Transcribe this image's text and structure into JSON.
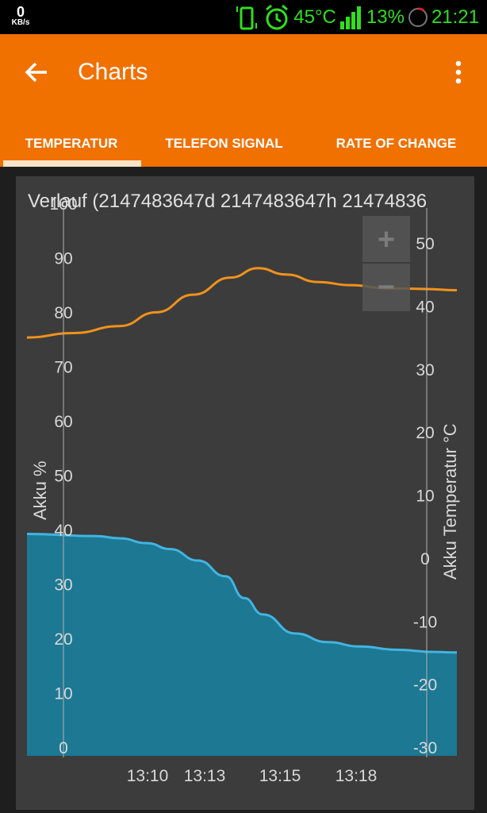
{
  "status_bar": {
    "net_speed": "0",
    "net_unit": "KB/s",
    "temperature": "45°C",
    "battery": "13%",
    "time": "21:21"
  },
  "app_bar": {
    "title": "Charts",
    "back_icon": "arrow-left-icon",
    "menu_icon": "more-vert-icon"
  },
  "tabs": [
    {
      "label": "TEMPERATUR",
      "active": true
    },
    {
      "label": "TELEFON SIGNAL",
      "active": false
    },
    {
      "label": "RATE OF CHANGE",
      "active": false
    }
  ],
  "zoom": {
    "in_label": "+",
    "out_label": "−"
  },
  "chart_data": {
    "type": "line",
    "title": "Verlauf (2147483647d 2147483647h 21474836",
    "x_ticks": [
      "13:10",
      "13:13",
      "13:15",
      "13:18"
    ],
    "y_left": {
      "label": "Akku %",
      "ticks": [
        "0",
        "10",
        "20",
        "30",
        "40",
        "50",
        "60",
        "70",
        "80",
        "90",
        "100"
      ],
      "range": [
        0,
        100
      ]
    },
    "y_right": {
      "label": "Akku Temperatur °C",
      "ticks": [
        "-30",
        "-20",
        "-10",
        "0",
        "10",
        "20",
        "30",
        "40",
        "50"
      ],
      "range": [
        -30,
        54
      ]
    },
    "series": [
      {
        "name": "Akku %",
        "axis": "left",
        "style": "area",
        "color": "#42b4e0",
        "fill": "#1c7893",
        "x": [
          0,
          1.5,
          2.0,
          2.6,
          3.1,
          3.7,
          4.3,
          4.7,
          5.1,
          5.8,
          6.5,
          7.2,
          8.0,
          8.8,
          9.3
        ],
        "values": [
          39.2,
          38.8,
          38.4,
          37.5,
          36.4,
          34.3,
          31.4,
          27.4,
          24.4,
          20.9,
          19.3,
          18.5,
          17.9,
          17.5,
          17.4
        ]
      },
      {
        "name": "Akku Temperatur °C",
        "axis": "right",
        "style": "line",
        "color": "#f0921b",
        "x": [
          0,
          1.0,
          2.0,
          2.8,
          3.6,
          4.4,
          5.0,
          5.6,
          6.3,
          7.0,
          7.8,
          8.6,
          9.3
        ],
        "values": [
          35.0,
          35.7,
          36.8,
          39.0,
          41.8,
          44.5,
          46.0,
          45.0,
          43.8,
          43.3,
          42.8,
          42.7,
          42.5
        ]
      }
    ]
  }
}
